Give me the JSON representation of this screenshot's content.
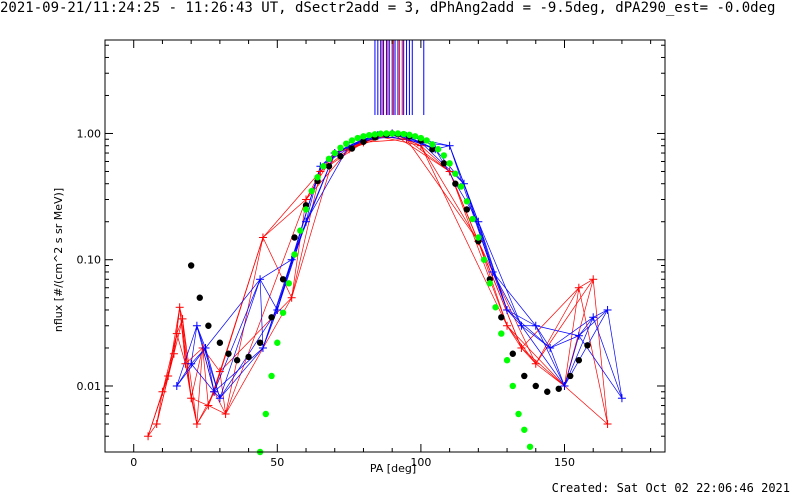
{
  "title": "2021-09-21/11:24:25 - 11:26:43 UT, dSectr2add = 3, dPhAng2add = -9.5deg, dPA290_est= -0.0deg",
  "footer": "Created: Sat Oct 02 22:06:46 2021",
  "colors": {
    "red": "#ff0000",
    "blue": "#0000ff",
    "green": "#00ff00",
    "black": "#000000"
  },
  "chart_data": {
    "type": "scatter",
    "xlabel": "PA [deg]",
    "ylabel": "nflux [#/(cm^2 s sr MeV)]",
    "xlim": [
      -10,
      185
    ],
    "ylim": [
      0.003,
      5.5
    ],
    "yscale": "log",
    "xticks": [
      "0",
      "50",
      "100",
      "150"
    ],
    "yticks": [
      "0.01",
      "0.10",
      "1.00"
    ],
    "vertical_lines": {
      "blue": [
        84,
        85,
        86,
        87,
        88,
        89,
        90,
        91,
        92,
        94,
        95,
        96,
        97,
        101
      ],
      "red": [
        86.5,
        88.5,
        90.5,
        92.5,
        93.5
      ]
    },
    "series": [
      {
        "color": "red",
        "points": [
          [
            5,
            0.004
          ],
          [
            8,
            0.005
          ],
          [
            10,
            0.009
          ],
          [
            12,
            0.012
          ],
          [
            14,
            0.018
          ],
          [
            15,
            0.026
          ],
          [
            16,
            0.042
          ],
          [
            17,
            0.034
          ],
          [
            18,
            0.015
          ],
          [
            20,
            0.008
          ],
          [
            22,
            0.005
          ],
          [
            24,
            0.02
          ],
          [
            26,
            0.007
          ],
          [
            28,
            0.009
          ],
          [
            30,
            0.013
          ],
          [
            32,
            0.006
          ],
          [
            45,
            0.15
          ],
          [
            55,
            0.05
          ],
          [
            60,
            0.3
          ],
          [
            65,
            0.5
          ],
          [
            70,
            0.7
          ],
          [
            75,
            0.75
          ],
          [
            80,
            0.85
          ],
          [
            85,
            0.95
          ],
          [
            90,
            1.0
          ],
          [
            95,
            0.9
          ],
          [
            100,
            0.8
          ],
          [
            110,
            0.5
          ],
          [
            120,
            0.14
          ],
          [
            130,
            0.03
          ],
          [
            135,
            0.02
          ],
          [
            140,
            0.015
          ],
          [
            150,
            0.01
          ],
          [
            155,
            0.06
          ],
          [
            160,
            0.07
          ],
          [
            165,
            0.005
          ]
        ]
      },
      {
        "color": "blue",
        "points": [
          [
            15,
            0.01
          ],
          [
            20,
            0.015
          ],
          [
            22,
            0.03
          ],
          [
            25,
            0.02
          ],
          [
            28,
            0.009
          ],
          [
            30,
            0.008
          ],
          [
            44,
            0.07
          ],
          [
            45,
            0.02
          ],
          [
            50,
            0.04
          ],
          [
            55,
            0.1
          ],
          [
            60,
            0.2
          ],
          [
            65,
            0.55
          ],
          [
            70,
            0.7
          ],
          [
            75,
            0.8
          ],
          [
            80,
            0.9
          ],
          [
            85,
            0.97
          ],
          [
            90,
            1.0
          ],
          [
            95,
            0.95
          ],
          [
            100,
            0.85
          ],
          [
            105,
            0.75
          ],
          [
            110,
            0.8
          ],
          [
            115,
            0.4
          ],
          [
            120,
            0.2
          ],
          [
            125,
            0.08
          ],
          [
            130,
            0.04
          ],
          [
            135,
            0.03
          ],
          [
            140,
            0.03
          ],
          [
            145,
            0.02
          ],
          [
            150,
            0.01
          ],
          [
            155,
            0.025
          ],
          [
            160,
            0.035
          ],
          [
            165,
            0.04
          ],
          [
            170,
            0.008
          ]
        ]
      },
      {
        "color": "black",
        "name": "",
        "points": [
          [
            20,
            0.09
          ],
          [
            23,
            0.05
          ],
          [
            26,
            0.03
          ],
          [
            30,
            0.022
          ],
          [
            33,
            0.018
          ],
          [
            36,
            0.016
          ],
          [
            40,
            0.017
          ],
          [
            44,
            0.022
          ],
          [
            48,
            0.035
          ],
          [
            52,
            0.07
          ],
          [
            56,
            0.15
          ],
          [
            60,
            0.27
          ],
          [
            64,
            0.42
          ],
          [
            68,
            0.55
          ],
          [
            72,
            0.66
          ],
          [
            76,
            0.76
          ],
          [
            80,
            0.86
          ],
          [
            84,
            0.93
          ],
          [
            88,
            0.98
          ],
          [
            90,
            1.0
          ],
          [
            92,
            0.99
          ],
          [
            96,
            0.95
          ],
          [
            100,
            0.88
          ],
          [
            104,
            0.75
          ],
          [
            108,
            0.58
          ],
          [
            112,
            0.4
          ],
          [
            116,
            0.25
          ],
          [
            120,
            0.14
          ],
          [
            124,
            0.07
          ],
          [
            128,
            0.035
          ],
          [
            132,
            0.018
          ],
          [
            136,
            0.012
          ],
          [
            140,
            0.01
          ],
          [
            144,
            0.009
          ],
          [
            148,
            0.0095
          ],
          [
            152,
            0.012
          ],
          [
            155,
            0.016
          ],
          [
            158,
            0.021
          ]
        ]
      },
      {
        "color": "green",
        "name": "",
        "points": [
          [
            44,
            0.003
          ],
          [
            46,
            0.006
          ],
          [
            48,
            0.012
          ],
          [
            50,
            0.022
          ],
          [
            52,
            0.038
          ],
          [
            54,
            0.065
          ],
          [
            56,
            0.11
          ],
          [
            58,
            0.17
          ],
          [
            60,
            0.25
          ],
          [
            62,
            0.35
          ],
          [
            64,
            0.45
          ],
          [
            66,
            0.55
          ],
          [
            68,
            0.63
          ],
          [
            70,
            0.7
          ],
          [
            72,
            0.77
          ],
          [
            74,
            0.83
          ],
          [
            76,
            0.88
          ],
          [
            78,
            0.92
          ],
          [
            80,
            0.95
          ],
          [
            82,
            0.97
          ],
          [
            84,
            0.985
          ],
          [
            86,
            0.995
          ],
          [
            88,
            1.0
          ],
          [
            90,
            1.0
          ],
          [
            92,
            1.0
          ],
          [
            94,
            0.99
          ],
          [
            96,
            0.975
          ],
          [
            98,
            0.95
          ],
          [
            100,
            0.92
          ],
          [
            102,
            0.88
          ],
          [
            104,
            0.82
          ],
          [
            106,
            0.75
          ],
          [
            108,
            0.67
          ],
          [
            110,
            0.58
          ],
          [
            112,
            0.48
          ],
          [
            114,
            0.38
          ],
          [
            116,
            0.29
          ],
          [
            118,
            0.21
          ],
          [
            120,
            0.15
          ],
          [
            122,
            0.1
          ],
          [
            124,
            0.065
          ],
          [
            126,
            0.042
          ],
          [
            128,
            0.026
          ],
          [
            130,
            0.016
          ],
          [
            132,
            0.01
          ],
          [
            134,
            0.006
          ],
          [
            136,
            0.0045
          ],
          [
            138,
            0.0033
          ]
        ]
      }
    ]
  }
}
